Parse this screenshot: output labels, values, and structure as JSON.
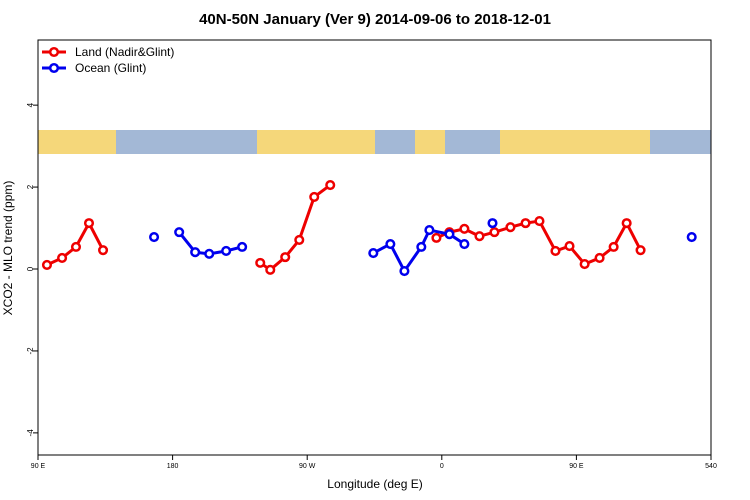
{
  "chart_data": {
    "type": "line",
    "title": "40N-50N January (Ver 9)   2014-09-06 to 2018-12-01",
    "x_label": "Longitude (deg E)",
    "y_label": "XCO2 - MLO trend (ppm)",
    "xlim": [
      90,
      540
    ],
    "ylim": [
      -4.54,
      5.59
    ],
    "xticks": [
      {
        "value": 90,
        "label": "90 E"
      },
      180,
      {
        "value": 270,
        "label": "90 W"
      },
      {
        "value": 360,
        "label": "0"
      },
      {
        "value": 450,
        "label": "90 E"
      },
      540
    ],
    "yticks": [
      -4,
      -2,
      0,
      2,
      4
    ],
    "legend": "top-left",
    "series": [
      {
        "name": "Land (Nadir&Glint)",
        "color": "#ee0000",
        "x": [
          96.0,
          106.1,
          115.4,
          124.1,
          133.5,
          null,
          238.6,
          245.3,
          255.3,
          264.7,
          274.7,
          285.4,
          null,
          356.4,
          365.1,
          375.1,
          385.2,
          395.2,
          405.9,
          416.0,
          425.3,
          436.0,
          445.4,
          455.5,
          465.5,
          474.9,
          483.6,
          492.9
        ],
        "values": [
          0.1,
          0.27,
          0.54,
          1.12,
          0.46,
          null,
          0.15,
          -0.02,
          0.29,
          0.71,
          1.76,
          2.05,
          null,
          0.76,
          0.9,
          0.98,
          0.8,
          0.9,
          1.02,
          1.12,
          1.17,
          0.44,
          0.56,
          0.12,
          0.27,
          0.54,
          1.12,
          0.46
        ]
      },
      {
        "name": "Ocean (Glint)",
        "color": "#0000ee",
        "x": [
          167.6,
          null,
          184.4,
          195.1,
          204.5,
          215.8,
          226.5,
          null,
          314.2,
          325.6,
          335.0,
          346.3,
          351.7,
          365.1,
          375.1,
          null,
          393.9,
          null,
          527.1
        ],
        "values": [
          0.78,
          null,
          0.9,
          0.41,
          0.37,
          0.44,
          0.54,
          null,
          0.39,
          0.61,
          -0.05,
          0.54,
          0.95,
          0.85,
          0.61,
          null,
          1.12,
          null,
          0.78
        ]
      }
    ]
  }
}
